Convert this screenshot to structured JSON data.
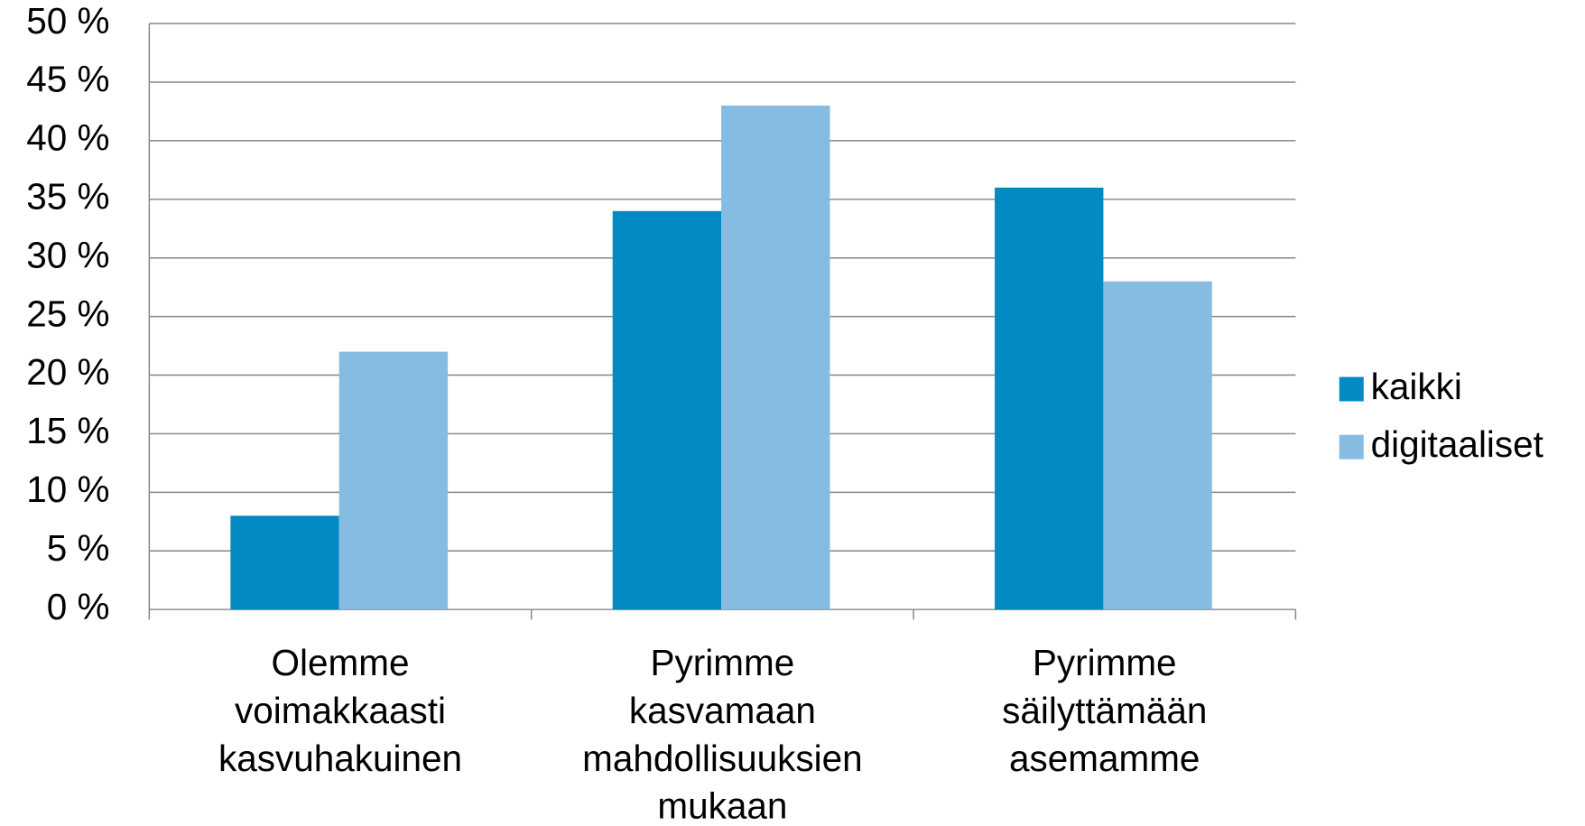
{
  "chart_data": {
    "type": "bar",
    "categories": [
      "Olemme voimakkaasti kasvuhakuinen",
      "Pyrimme kasvamaan mahdollisuuksien mukaan",
      "Pyrimme säilyttämään asemamme"
    ],
    "series": [
      {
        "name": "kaikki",
        "color": "#028bc3",
        "values": [
          8,
          34,
          36
        ]
      },
      {
        "name": "digitaaliset",
        "color": "#86bbe2",
        "values": [
          22,
          43,
          28
        ]
      }
    ],
    "ylim": [
      0,
      50
    ],
    "yticks": [
      {
        "value": 0,
        "label": "0 %"
      },
      {
        "value": 5,
        "label": "5 %"
      },
      {
        "value": 10,
        "label": "10 %"
      },
      {
        "value": 15,
        "label": "15 %"
      },
      {
        "value": 20,
        "label": "20 %"
      },
      {
        "value": 25,
        "label": "25 %"
      },
      {
        "value": 30,
        "label": "30 %"
      },
      {
        "value": 35,
        "label": "35 %"
      },
      {
        "value": 40,
        "label": "40 %"
      },
      {
        "value": 45,
        "label": "45 %"
      },
      {
        "value": 50,
        "label": "50 %"
      }
    ],
    "grid": true,
    "legend": "right"
  }
}
